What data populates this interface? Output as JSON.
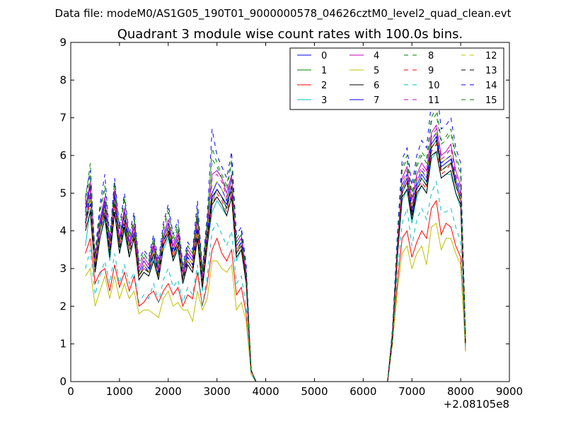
{
  "header": {
    "datafile": "Data file: modeM0/AS1G05_190T01_9000000578_04626cztM0_level2_quad_clean.evt"
  },
  "chart_data": {
    "type": "line",
    "title": "Quadrant 3 module wise count rates with 100.0s bins.",
    "xlabel": "",
    "ylabel": "",
    "x_offset_label": "+2.08105e8",
    "xlim": [
      0,
      9000
    ],
    "ylim": [
      0,
      9
    ],
    "xticks": [
      0,
      1000,
      2000,
      3000,
      4000,
      5000,
      6000,
      7000,
      8000,
      9000
    ],
    "yticks": [
      0,
      1,
      2,
      3,
      4,
      5,
      6,
      7,
      8,
      9
    ],
    "legend_position": "top-right",
    "grid": false,
    "x": [
      300,
      400,
      500,
      600,
      700,
      800,
      900,
      1000,
      1100,
      1200,
      1300,
      1400,
      1500,
      1600,
      1700,
      1800,
      1900,
      2000,
      2100,
      2200,
      2300,
      2400,
      2500,
      2600,
      2700,
      2800,
      2900,
      3000,
      3100,
      3200,
      3300,
      3400,
      3500,
      3600,
      3700,
      3800,
      3900,
      4000,
      4500,
      5000,
      5500,
      6000,
      6500,
      6600,
      6700,
      6800,
      6900,
      7000,
      7100,
      7200,
      7300,
      7400,
      7500,
      7600,
      7700,
      7800,
      7900,
      8000,
      8100
    ],
    "series": [
      {
        "name": "0",
        "color": "#0000ff",
        "style": "solid",
        "values": [
          4.5,
          5.2,
          3.0,
          4.2,
          4.8,
          3.5,
          5.0,
          3.7,
          4.5,
          3.6,
          4.1,
          2.9,
          3.2,
          3.0,
          3.6,
          2.9,
          3.8,
          4.2,
          3.5,
          3.9,
          2.8,
          3.4,
          3.2,
          4.3,
          2.7,
          4.0,
          5.0,
          5.3,
          5.1,
          4.8,
          5.4,
          3.6,
          3.8,
          2.8,
          0.3,
          0,
          0,
          0,
          0,
          0,
          0,
          0,
          0,
          1.2,
          3.5,
          5.2,
          5.5,
          4.6,
          5.3,
          5.6,
          5.4,
          6.4,
          6.6,
          5.8,
          5.9,
          6.0,
          5.4,
          5.0,
          1.1
        ]
      },
      {
        "name": "1",
        "color": "#008000",
        "style": "solid",
        "values": [
          4.3,
          5.0,
          3.1,
          4.0,
          4.6,
          3.4,
          4.8,
          3.6,
          4.3,
          3.5,
          4.0,
          2.8,
          3.1,
          2.9,
          3.5,
          2.8,
          3.7,
          4.0,
          3.4,
          3.7,
          2.7,
          3.3,
          3.1,
          4.1,
          2.6,
          3.8,
          4.8,
          5.1,
          4.9,
          4.6,
          5.2,
          3.4,
          3.7,
          2.7,
          0.3,
          0,
          0,
          0,
          0,
          0,
          0,
          0,
          0,
          1.2,
          3.4,
          5.0,
          5.3,
          4.4,
          5.1,
          5.4,
          5.2,
          6.2,
          6.4,
          5.6,
          5.7,
          5.8,
          5.2,
          4.8,
          1.0
        ]
      },
      {
        "name": "2",
        "color": "#ff0000",
        "style": "solid",
        "values": [
          3.4,
          3.8,
          2.6,
          2.9,
          3.0,
          2.4,
          3.1,
          2.5,
          2.9,
          2.4,
          2.8,
          2.0,
          2.1,
          2.3,
          2.4,
          2.1,
          2.4,
          2.6,
          2.3,
          2.5,
          2.0,
          2.3,
          2.2,
          2.9,
          2.0,
          2.6,
          3.5,
          3.8,
          3.4,
          3.2,
          3.5,
          2.3,
          2.5,
          1.8,
          0.2,
          0,
          0,
          0,
          0,
          0,
          0,
          0,
          0,
          1.0,
          2.6,
          3.8,
          4.0,
          3.3,
          3.7,
          4.0,
          3.8,
          4.6,
          4.8,
          3.9,
          4.2,
          4.1,
          3.6,
          3.3,
          0.8
        ]
      },
      {
        "name": "3",
        "color": "#00bfbf",
        "style": "solid",
        "values": [
          3.6,
          4.6,
          2.9,
          3.8,
          4.3,
          3.2,
          4.5,
          3.4,
          4.0,
          3.3,
          3.8,
          2.7,
          2.9,
          2.8,
          3.3,
          2.7,
          3.5,
          3.8,
          3.2,
          3.5,
          2.6,
          3.1,
          2.9,
          3.8,
          2.4,
          3.6,
          4.5,
          4.8,
          4.6,
          4.4,
          4.9,
          3.2,
          3.5,
          2.6,
          0.3,
          0,
          0,
          0,
          0,
          0,
          0,
          0,
          0,
          1.1,
          3.3,
          4.8,
          5.1,
          4.2,
          4.9,
          5.2,
          5.0,
          5.9,
          6.1,
          5.4,
          5.5,
          5.5,
          5.0,
          4.6,
          1.0
        ]
      },
      {
        "name": "4",
        "color": "#bf00bf",
        "style": "solid",
        "values": [
          4.6,
          5.3,
          3.2,
          4.3,
          4.9,
          3.6,
          5.1,
          3.8,
          4.6,
          3.7,
          4.2,
          3.0,
          3.3,
          3.1,
          3.7,
          3.0,
          3.9,
          4.3,
          3.6,
          4.0,
          2.9,
          3.5,
          3.3,
          4.4,
          2.8,
          4.1,
          5.5,
          5.6,
          5.4,
          5.0,
          5.5,
          3.7,
          3.9,
          2.9,
          0.3,
          0,
          0,
          0,
          0,
          0,
          0,
          0,
          0,
          1.3,
          3.6,
          5.4,
          5.7,
          4.8,
          5.5,
          5.8,
          5.6,
          6.6,
          6.8,
          6.0,
          6.1,
          6.3,
          5.6,
          5.2,
          1.1
        ]
      },
      {
        "name": "5",
        "color": "#bfbf00",
        "style": "solid",
        "values": [
          2.8,
          3.0,
          2.0,
          2.4,
          2.8,
          2.2,
          2.8,
          2.2,
          2.6,
          2.2,
          2.4,
          1.8,
          1.9,
          1.9,
          1.8,
          1.7,
          2.2,
          2.4,
          2.0,
          2.1,
          1.9,
          1.9,
          1.6,
          2.4,
          1.9,
          2.2,
          3.2,
          3.2,
          3.0,
          2.9,
          3.1,
          1.9,
          2.1,
          1.6,
          0.2,
          0,
          0,
          0,
          0,
          0,
          0,
          0,
          0,
          1.0,
          2.4,
          3.4,
          3.6,
          3.0,
          3.4,
          3.6,
          3.1,
          4.1,
          4.2,
          3.5,
          3.8,
          3.8,
          3.4,
          3.1,
          0.8
        ]
      },
      {
        "name": "6",
        "color": "#000000",
        "style": "solid",
        "values": [
          4.0,
          4.5,
          2.9,
          3.8,
          4.4,
          3.3,
          4.5,
          3.4,
          4.1,
          3.3,
          3.8,
          2.7,
          2.9,
          2.8,
          3.2,
          2.7,
          3.6,
          3.9,
          3.2,
          3.6,
          2.6,
          3.1,
          2.9,
          3.8,
          2.5,
          3.6,
          4.7,
          4.9,
          4.7,
          4.4,
          4.9,
          3.3,
          3.5,
          2.6,
          0.3,
          0,
          0,
          0,
          0,
          0,
          0,
          0,
          0,
          1.1,
          3.3,
          4.9,
          5.1,
          4.3,
          5.0,
          5.2,
          5.0,
          6.0,
          6.1,
          5.4,
          5.5,
          5.6,
          5.0,
          4.7,
          1.0
        ]
      },
      {
        "name": "7",
        "color": "#0000ff",
        "style": "solid",
        "values": [
          4.2,
          4.9,
          3.0,
          4.1,
          4.7,
          3.4,
          4.9,
          3.6,
          4.4,
          3.5,
          4.0,
          2.8,
          3.1,
          2.9,
          3.4,
          2.8,
          3.7,
          4.1,
          3.4,
          3.8,
          2.7,
          3.3,
          3.1,
          4.1,
          2.6,
          3.9,
          4.9,
          5.1,
          4.9,
          4.7,
          5.2,
          3.5,
          3.7,
          2.7,
          0.3,
          0,
          0,
          0,
          0,
          0,
          0,
          0,
          0,
          1.2,
          3.4,
          5.1,
          5.4,
          4.5,
          5.2,
          5.5,
          5.3,
          6.3,
          6.5,
          5.7,
          5.8,
          5.9,
          5.3,
          4.9,
          1.0
        ]
      },
      {
        "name": "8",
        "color": "#008000",
        "style": "dashed",
        "values": [
          4.8,
          5.8,
          3.3,
          4.6,
          5.2,
          3.7,
          5.3,
          4.0,
          4.9,
          3.8,
          4.4,
          3.1,
          3.4,
          3.2,
          3.8,
          3.1,
          4.1,
          4.6,
          3.8,
          4.2,
          3.0,
          3.6,
          3.4,
          4.6,
          2.9,
          4.2,
          6.2,
          5.8,
          5.5,
          5.2,
          5.9,
          3.8,
          4.0,
          3.0,
          0.3,
          0,
          0,
          0,
          0,
          0,
          0,
          0,
          0,
          1.3,
          3.8,
          5.7,
          6.0,
          5.0,
          5.8,
          6.1,
          5.9,
          7.0,
          7.3,
          6.4,
          6.5,
          6.7,
          6.0,
          5.6,
          1.2
        ]
      },
      {
        "name": "9",
        "color": "#ff0000",
        "style": "dashed",
        "values": [
          4.1,
          4.8,
          3.0,
          4.0,
          4.5,
          3.4,
          4.7,
          3.6,
          4.2,
          3.5,
          3.9,
          2.8,
          3.0,
          2.9,
          3.4,
          2.8,
          3.6,
          4.0,
          3.3,
          3.7,
          2.7,
          3.2,
          3.0,
          4.0,
          2.6,
          3.7,
          4.7,
          5.0,
          4.8,
          4.5,
          5.0,
          3.4,
          3.6,
          2.7,
          0.3,
          0,
          0,
          0,
          0,
          0,
          0,
          0,
          0,
          1.2,
          3.4,
          5.0,
          5.3,
          4.4,
          5.1,
          5.3,
          5.1,
          6.1,
          6.3,
          5.5,
          5.6,
          5.8,
          5.2,
          4.8,
          1.0
        ]
      },
      {
        "name": "10",
        "color": "#00bfbf",
        "style": "dashed",
        "values": [
          3.0,
          3.5,
          2.3,
          2.8,
          3.2,
          2.6,
          3.4,
          2.6,
          3.1,
          2.6,
          2.9,
          2.1,
          2.3,
          2.2,
          2.6,
          2.1,
          2.7,
          3.0,
          2.5,
          2.7,
          2.1,
          2.5,
          2.3,
          3.1,
          2.0,
          2.8,
          4.0,
          4.2,
          3.9,
          3.6,
          4.0,
          2.6,
          2.8,
          2.0,
          0.2,
          0,
          0,
          0,
          0,
          0,
          0,
          0,
          0,
          1.1,
          2.9,
          4.2,
          4.6,
          3.6,
          4.3,
          4.6,
          4.3,
          5.0,
          5.3,
          4.5,
          4.5,
          4.6,
          4.1,
          3.7,
          0.9
        ]
      },
      {
        "name": "11",
        "color": "#bf00bf",
        "style": "dashed",
        "values": [
          4.4,
          5.1,
          3.1,
          4.2,
          4.8,
          3.5,
          5.0,
          3.7,
          4.5,
          3.6,
          4.1,
          2.9,
          3.2,
          3.0,
          3.6,
          2.9,
          3.8,
          4.2,
          3.5,
          3.9,
          2.8,
          3.4,
          3.2,
          4.3,
          2.7,
          4.0,
          5.4,
          5.5,
          5.3,
          4.9,
          5.4,
          3.6,
          3.8,
          2.8,
          0.3,
          0,
          0,
          0,
          0,
          0,
          0,
          0,
          0,
          1.3,
          3.5,
          5.3,
          5.6,
          4.7,
          5.4,
          5.7,
          5.5,
          6.5,
          6.7,
          5.9,
          6.0,
          6.2,
          5.5,
          5.1,
          1.1
        ]
      },
      {
        "name": "12",
        "color": "#bfbf00",
        "style": "dashed",
        "values": [
          4.3,
          4.9,
          3.0,
          4.1,
          4.6,
          3.4,
          4.8,
          3.6,
          4.4,
          3.5,
          4.0,
          2.8,
          3.1,
          2.9,
          3.5,
          2.8,
          3.7,
          4.1,
          3.4,
          3.8,
          2.7,
          3.3,
          3.1,
          4.2,
          2.6,
          3.9,
          5.2,
          5.3,
          5.1,
          4.8,
          5.3,
          3.5,
          3.7,
          2.7,
          0.3,
          0,
          0,
          0,
          0,
          0,
          0,
          0,
          0,
          1.2,
          3.4,
          5.2,
          5.5,
          4.6,
          5.3,
          5.6,
          5.4,
          6.4,
          6.6,
          5.8,
          5.9,
          6.0,
          5.4,
          5.0,
          1.1
        ]
      },
      {
        "name": "13",
        "color": "#000000",
        "style": "dashed",
        "values": [
          4.2,
          4.7,
          3.0,
          4.0,
          4.5,
          3.4,
          4.7,
          3.5,
          4.2,
          3.4,
          3.9,
          2.8,
          3.0,
          2.9,
          3.4,
          2.8,
          3.7,
          4.0,
          3.3,
          3.7,
          2.7,
          3.2,
          3.0,
          4.0,
          2.6,
          3.8,
          4.9,
          5.1,
          4.9,
          4.6,
          5.1,
          3.4,
          3.6,
          2.7,
          0.3,
          0,
          0,
          0,
          0,
          0,
          0,
          0,
          0,
          1.2,
          3.4,
          5.0,
          5.3,
          4.4,
          5.1,
          5.4,
          5.2,
          6.2,
          6.4,
          5.6,
          5.7,
          5.8,
          5.2,
          4.8,
          1.0
        ]
      },
      {
        "name": "14",
        "color": "#0000ff",
        "style": "dashed",
        "values": [
          4.9,
          5.6,
          3.4,
          4.7,
          5.5,
          3.8,
          5.4,
          4.1,
          5.0,
          3.9,
          4.5,
          3.2,
          3.5,
          3.3,
          3.9,
          3.2,
          4.2,
          4.7,
          3.9,
          4.3,
          3.1,
          3.7,
          3.5,
          4.8,
          3.0,
          4.4,
          6.7,
          6.0,
          5.7,
          5.4,
          6.1,
          3.9,
          4.1,
          3.1,
          0.3,
          0,
          0,
          0,
          0,
          0,
          0,
          0,
          0,
          1.4,
          3.9,
          5.9,
          6.2,
          5.2,
          6.0,
          6.4,
          6.2,
          7.4,
          7.9,
          6.7,
          6.8,
          7.0,
          6.2,
          5.8,
          1.2
        ]
      },
      {
        "name": "15",
        "color": "#008000",
        "style": "dashed",
        "values": [
          4.7,
          5.5,
          3.3,
          4.5,
          5.1,
          3.7,
          5.2,
          4.0,
          4.8,
          3.8,
          4.3,
          3.1,
          3.4,
          3.2,
          3.8,
          3.1,
          4.0,
          4.5,
          3.7,
          4.1,
          3.0,
          3.6,
          3.4,
          4.5,
          2.9,
          4.2,
          5.9,
          5.7,
          5.4,
          5.1,
          5.8,
          3.7,
          3.9,
          2.9,
          0.3,
          0,
          0,
          0,
          0,
          0,
          0,
          0,
          0,
          1.3,
          3.7,
          5.6,
          5.9,
          4.9,
          5.7,
          6.0,
          5.8,
          6.9,
          7.1,
          6.3,
          6.4,
          6.6,
          5.9,
          5.5,
          1.2
        ]
      }
    ]
  }
}
